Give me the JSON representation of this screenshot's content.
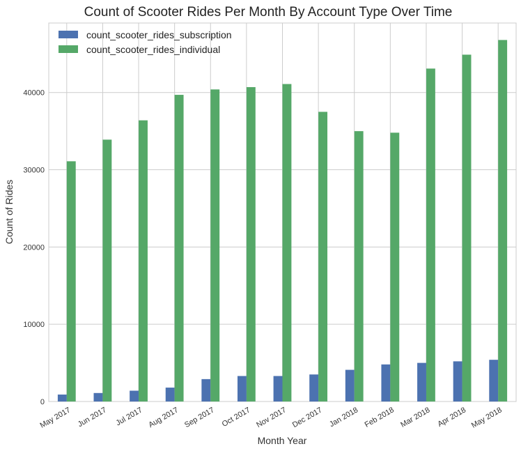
{
  "chart_data": {
    "type": "bar",
    "title": "Count of Scooter Rides Per Month By Account Type Over Time",
    "xlabel": "Month Year",
    "ylabel": "Count of Rides",
    "categories": [
      "May 2017",
      "Jun 2017",
      "Jul 2017",
      "Aug 2017",
      "Sep 2017",
      "Oct 2017",
      "Nov 2017",
      "Dec 2017",
      "Jan 2018",
      "Feb 2018",
      "Mar 2018",
      "Apr 2018",
      "May 2018"
    ],
    "series": [
      {
        "name": "count_scooter_rides_subscription",
        "color": "#4c72b0",
        "values": [
          900,
          1100,
          1400,
          1800,
          2900,
          3300,
          3300,
          3500,
          4100,
          4800,
          5000,
          5200,
          5400
        ]
      },
      {
        "name": "count_scooter_rides_individual",
        "color": "#55a868",
        "values": [
          31100,
          33900,
          36400,
          39700,
          40400,
          40700,
          41100,
          37500,
          35000,
          34800,
          43100,
          44900,
          46800
        ]
      }
    ],
    "ylim": [
      0,
      49000
    ],
    "yticks": [
      0,
      10000,
      20000,
      30000,
      40000
    ],
    "grid": true,
    "legend_position": "top-left"
  }
}
